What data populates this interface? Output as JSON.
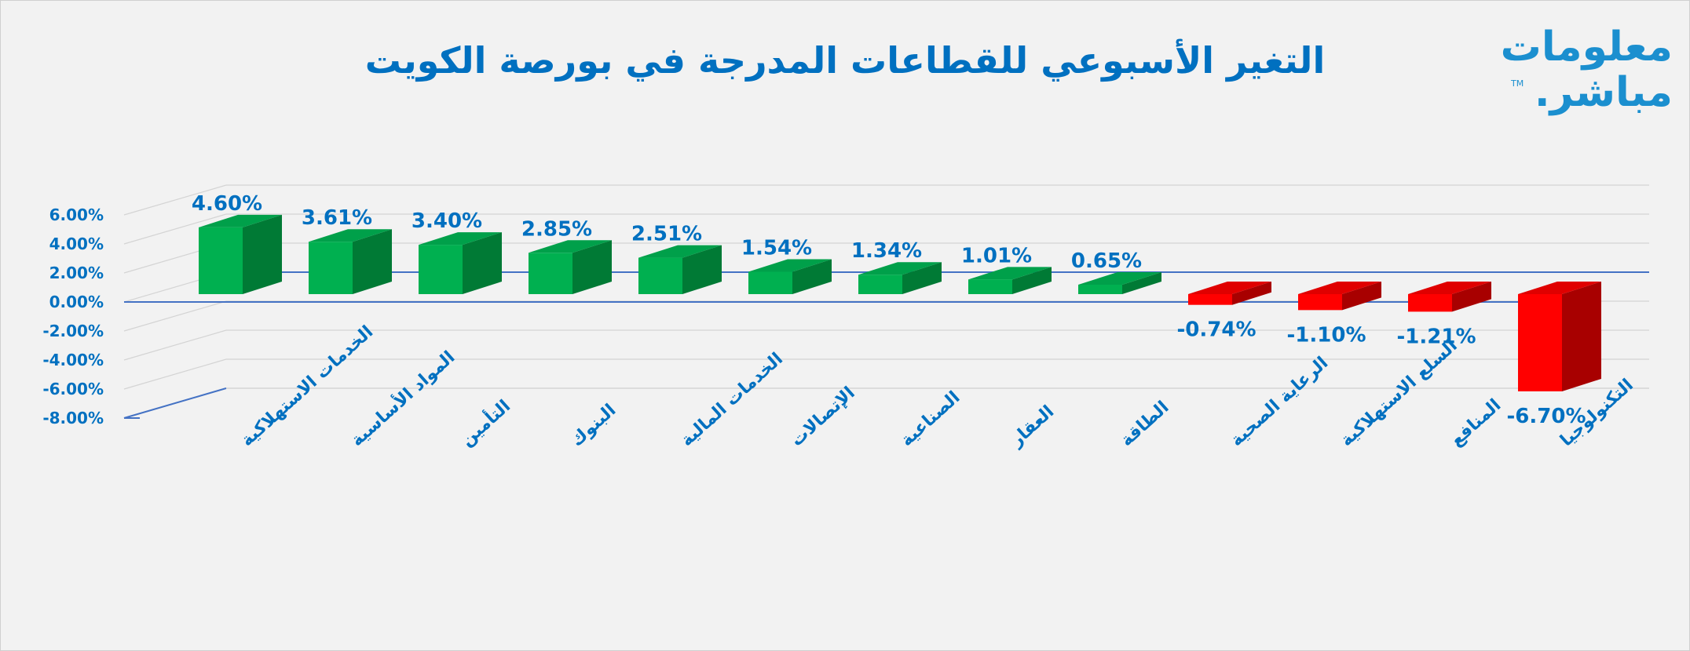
{
  "title": "التغير الأسبوعي للقطاعات المدرجة في بورصة الكويت",
  "logo": {
    "line1": "معلومات",
    "line2": "مباشر.",
    "tm": "TM"
  },
  "colors": {
    "positive_front": "#00b050",
    "positive_side": "#007a35",
    "positive_top": "#00a04a",
    "negative_front": "#ff0000",
    "negative_side": "#a80000",
    "negative_top": "#e00000",
    "text": "#0070c0",
    "axis": "#4472c4",
    "grid": "#d4d4d4"
  },
  "chart_data": {
    "type": "bar",
    "categories": [
      "الخدمات الاستهلاكية",
      "المواد الأساسية",
      "التأمين",
      "البنوك",
      "الخدمات المالية",
      "الإتصالات",
      "الصناعية",
      "العقار",
      "الطاقة",
      "الرعاية الصحية",
      "السلع الاستهلاكية",
      "المنافع",
      "التكنولوجيا"
    ],
    "values": [
      4.6,
      3.61,
      3.4,
      2.85,
      2.51,
      1.54,
      1.34,
      1.01,
      0.65,
      -0.74,
      -1.1,
      -1.21,
      -6.7
    ],
    "data_labels": [
      "4.60%",
      "3.61%",
      "3.40%",
      "2.85%",
      "2.51%",
      "1.54%",
      "1.34%",
      "1.01%",
      "0.65%",
      "-0.74%",
      "-1.10%",
      "-1.21%",
      "-6.70%"
    ],
    "y_ticks": [
      6,
      4,
      2,
      0,
      -2,
      -4,
      -6,
      -8
    ],
    "y_tick_labels": [
      "6.00%",
      "4.00%",
      "2.00%",
      "0.00%",
      "-2.00%",
      "-4.00%",
      "-6.00%",
      "-8.00%"
    ],
    "ylim": [
      -8,
      6
    ],
    "title": "التغير الأسبوعي للقطاعات المدرجة في بورصة الكويت",
    "xlabel": "",
    "ylabel": "",
    "grid": true,
    "legend": "none",
    "style": "3d"
  }
}
